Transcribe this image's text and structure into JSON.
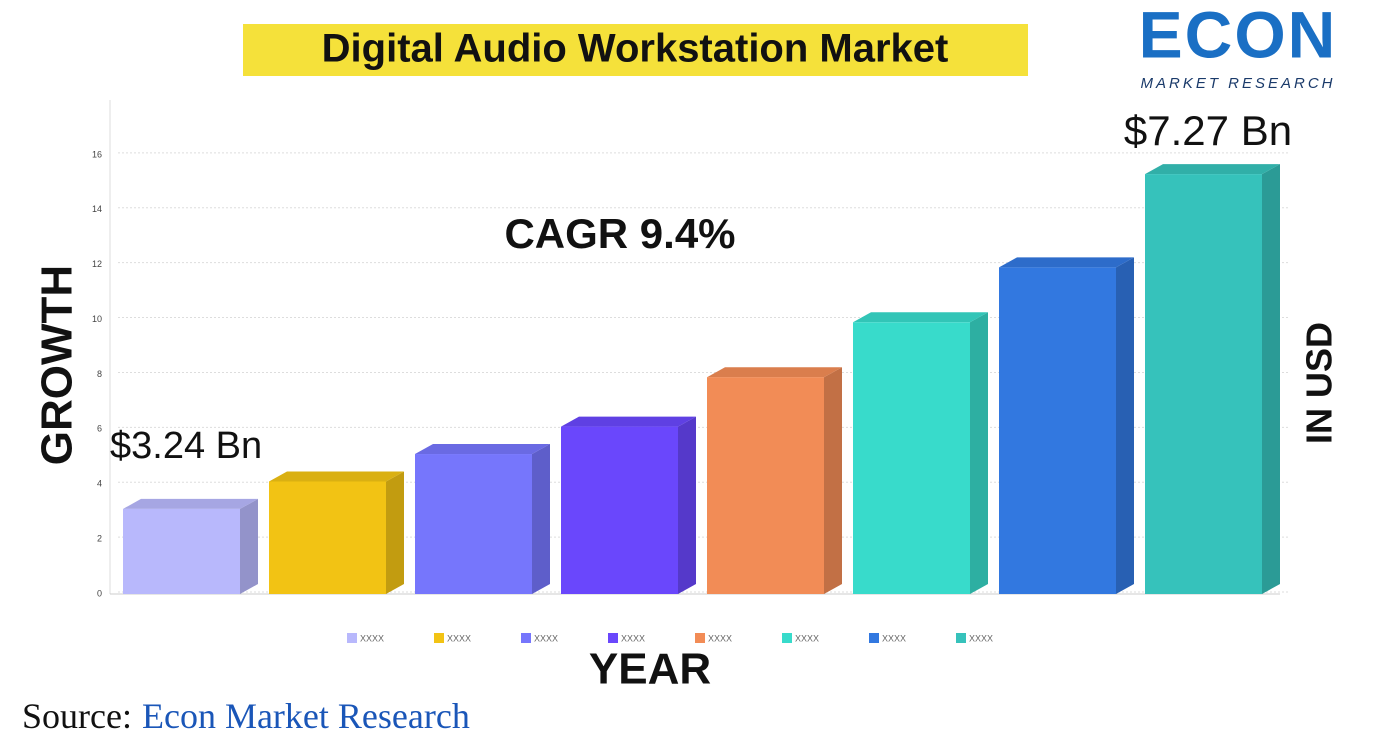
{
  "chart_data": {
    "type": "bar3d",
    "title": "Digital Audio Workstation Market",
    "logo": {
      "name": "ECON",
      "tagline": "MARKET RESEARCH"
    },
    "annotations": {
      "start": "$3.24 Bn",
      "end": "$7.27 Bn",
      "cagr": "CAGR 9.4%"
    },
    "y_label": "GROWTH",
    "y2_label": "IN USD",
    "x_label": "YEAR",
    "source": {
      "prefix": "Source:",
      "name": "Econ Market Research"
    },
    "categories": [
      "XXXX",
      "XXXX",
      "XXXX",
      "XXXX",
      "XXXX",
      "XXXX",
      "XXXX",
      "XXXX"
    ],
    "values": [
      3.1,
      4.1,
      5.1,
      6.1,
      7.9,
      9.9,
      11.9,
      15.3
    ],
    "colors": [
      "#b8b8fc",
      "#f2c314",
      "#7676fc",
      "#6a47fc",
      "#f28c56",
      "#38dbcb",
      "#3278e0",
      "#36c2bb"
    ],
    "ylim": [
      0,
      18
    ],
    "yticks": [
      0,
      2,
      4,
      6,
      8,
      10,
      12,
      14,
      16
    ],
    "grid": true
  }
}
